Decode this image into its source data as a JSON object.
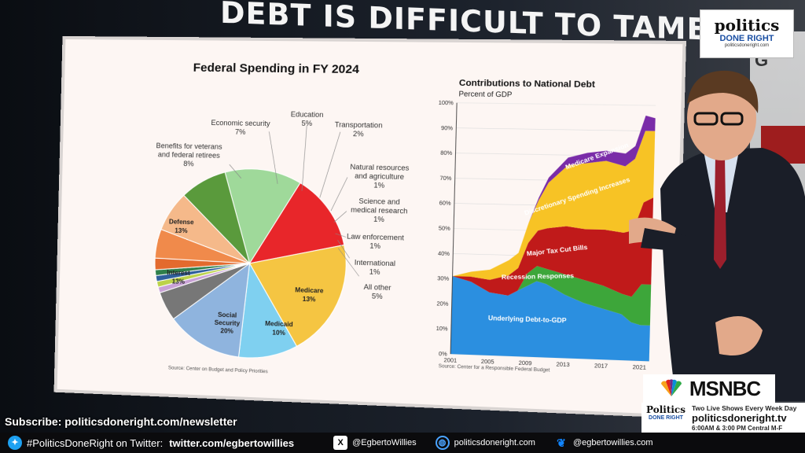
{
  "headline": "DEBT IS DIFFICULT TO TAME",
  "colors": {
    "accent_blue": "#1a4fa3",
    "tv_red": "#b01818"
  },
  "pie": {
    "title": "Federal Spending in FY 2024",
    "source": "Source: Center on Budget and Policy Priorities",
    "slices": [
      {
        "label": "Defense",
        "pct": "13%",
        "color": "#9fd99a"
      },
      {
        "label": "Interest",
        "pct": "13%",
        "color": "#e8262a"
      },
      {
        "label": "Social Security",
        "pct": "20%",
        "color": "#f5c542"
      },
      {
        "label": "Medicaid",
        "pct": "10%",
        "color": "#7fd0f0"
      },
      {
        "label": "Medicare",
        "pct": "13%",
        "color": "#8fb4de"
      },
      {
        "label": "All other",
        "pct": "5%",
        "color": "#777777"
      },
      {
        "label": "International",
        "pct": "1%",
        "color": "#c9a2d6"
      },
      {
        "label": "Law enforcement",
        "pct": "1%",
        "color": "#bcd24a"
      },
      {
        "label": "Science and medical research",
        "pct": "1%",
        "color": "#2f5f9c"
      },
      {
        "label": "Natural resources and agriculture",
        "pct": "1%",
        "color": "#2f7f4b"
      },
      {
        "label": "Transportation",
        "pct": "2%",
        "color": "#e36a2e"
      },
      {
        "label": "Education",
        "pct": "5%",
        "color": "#f08a4b"
      },
      {
        "label": "Economic security",
        "pct": "7%",
        "color": "#f5b98a"
      },
      {
        "label": "Benefits for veterans and federal retirees",
        "pct": "8%",
        "color": "#5a9a3c"
      }
    ],
    "callouts": {
      "education": "Education",
      "education_pct": "5%",
      "econ": "Economic security",
      "econ_pct": "7%",
      "vets1": "Benefits for veterans",
      "vets2": "and federal retirees",
      "vets_pct": "8%",
      "transport": "Transportation",
      "transport_pct": "2%",
      "nat1": "Natural resources",
      "nat2": "and agriculture",
      "nat_pct": "1%",
      "sci1": "Science and",
      "sci2": "medical research",
      "sci_pct": "1%",
      "law": "Law enforcement",
      "law_pct": "1%",
      "intl": "International",
      "intl_pct": "1%",
      "other": "All other",
      "other_pct": "5%"
    },
    "inner": {
      "defense": "Defense",
      "defense_pct": "13%",
      "interest": "Interest",
      "interest_pct": "13%",
      "ss1": "Social",
      "ss2": "Security",
      "ss_pct": "20%",
      "medicaid": "Medicaid",
      "medicaid_pct": "10%",
      "medicare": "Medicare",
      "medicare_pct": "13%"
    }
  },
  "chart_data": {
    "type": "area",
    "title": "Contributions to National Debt",
    "ylabel": "Percent of GDP",
    "source": "Source: Center for a Responsible Federal Budget",
    "x": [
      2001,
      2003,
      2005,
      2007,
      2008,
      2009,
      2010,
      2011,
      2013,
      2015,
      2017,
      2019,
      2020,
      2021,
      2022
    ],
    "xticks": [
      "2001",
      "2005",
      "2009",
      "2013",
      "2017",
      "2021"
    ],
    "yticks": [
      "0%",
      "10%",
      "20%",
      "30%",
      "40%",
      "50%",
      "60%",
      "70%",
      "80%",
      "90%",
      "100%"
    ],
    "ylim": [
      0,
      100
    ],
    "series": [
      {
        "name": "Underlying Debt-to-GDP",
        "color": "#2b8fe0",
        "values": [
          31,
          29,
          25,
          24,
          26,
          28,
          30,
          29,
          25,
          22,
          20,
          18,
          15,
          14,
          14
        ]
      },
      {
        "name": "Recession Responses",
        "color": "#3da63a",
        "values": [
          0,
          0,
          0,
          0,
          0,
          5,
          6,
          6,
          8,
          9,
          9,
          8,
          10,
          16,
          16
        ]
      },
      {
        "name": "Major Tax Cut Bills",
        "color": "#c01a1a",
        "values": [
          0,
          2,
          5,
          8,
          9,
          12,
          14,
          16,
          19,
          20,
          22,
          24,
          26,
          32,
          34
        ]
      },
      {
        "name": "Discretionary Spending Increases",
        "color": "#f7c325",
        "values": [
          0,
          2,
          4,
          6,
          6,
          8,
          12,
          18,
          24,
          26,
          27,
          26,
          28,
          28,
          26
        ]
      },
      {
        "name": "Medicare Expansion",
        "color": "#7a2ca8",
        "values": [
          0,
          0,
          0,
          0,
          0,
          0,
          1,
          2,
          3,
          4,
          4,
          5,
          5,
          6,
          5
        ]
      }
    ]
  },
  "pdr_logo": {
    "line1": "politics",
    "line2": "DONE RIGHT",
    "line3": "politicsdoneright.com"
  },
  "wall_letter": "G",
  "msnbc": "MSNBC",
  "promo": {
    "mini1": "Politics",
    "mini2": "DONE RIGHT",
    "line1": "Two Live Shows Every Week Day",
    "line2": "politicsdoneright.tv",
    "line3": "6:00AM & 3:00 PM Central M-F"
  },
  "subscribe": "Subscribe: politicsdoneright.com/newsletter",
  "ticker": {
    "hashtag": "#PoliticsDoneRight on Twitter:",
    "twitter_url": "twitter.com/egbertowillies",
    "x_handle": "@EgbertoWillies",
    "site": "politicsdoneright.com",
    "bluesky": "@egbertowillies.com"
  }
}
